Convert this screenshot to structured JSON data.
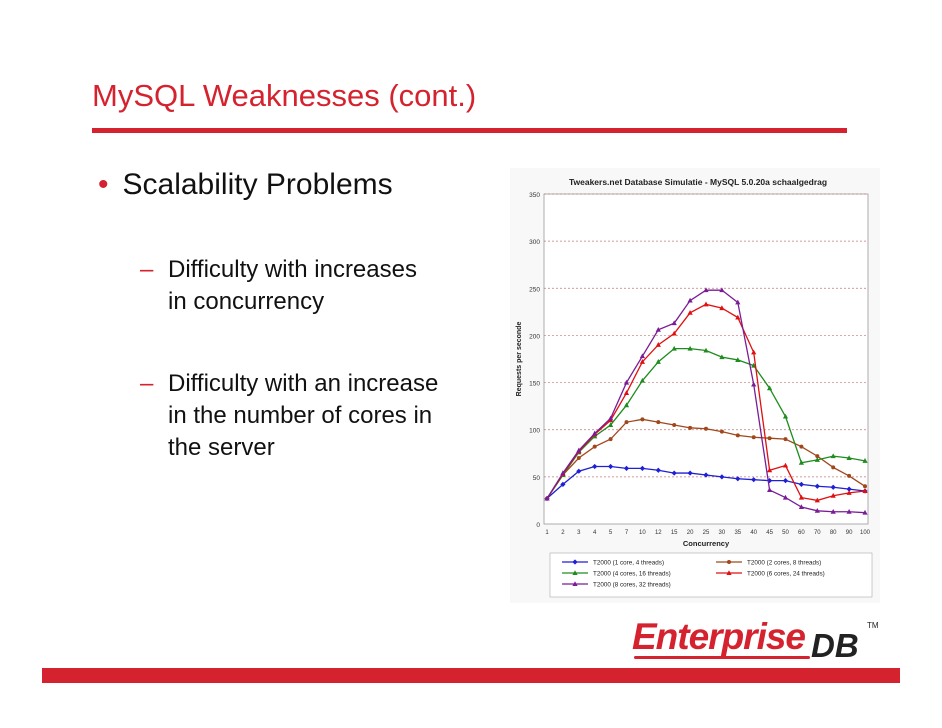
{
  "slide": {
    "title": "MySQL Weaknesses (cont.)",
    "bullet": "Scalability Problems",
    "sub_bullets": [
      {
        "line1": "Difficulty with increases",
        "line2": "in concurrency",
        "line3": ""
      },
      {
        "line1": "Difficulty with an increase",
        "line2": "in the number of cores in",
        "line3": "the server"
      }
    ]
  },
  "logo": {
    "part1": "Enterprise",
    "part2": "DB",
    "tm": "TM"
  },
  "colors": {
    "accent": "#d5222f",
    "blue": "#1f1fd6",
    "brown": "#a0471c",
    "green": "#1e8c1e",
    "red": "#e01010",
    "purple": "#7a1c96"
  },
  "chart_data": {
    "type": "line",
    "title": "Tweakers.net Database Simulatie - MySQL 5.0.20a schaalgedrag",
    "xlabel": "Concurrency",
    "ylabel": "Requests per seconde",
    "ylim": [
      0,
      350
    ],
    "yticks": [
      "0",
      "50",
      "100",
      "150",
      "200",
      "250",
      "300",
      "350"
    ],
    "grid": true,
    "legend_position": "bottom",
    "categories": [
      "1",
      "2",
      "3",
      "4",
      "5",
      "7",
      "10",
      "12",
      "15",
      "20",
      "25",
      "30",
      "35",
      "40",
      "45",
      "50",
      "60",
      "70",
      "80",
      "90",
      "100"
    ],
    "series": [
      {
        "name": "T2000 (1 core, 4 threads)",
        "color": "#1f1fd6",
        "marker": "diamond",
        "values": [
          27,
          42,
          56,
          61,
          61,
          59,
          59,
          57,
          54,
          54,
          52,
          50,
          48,
          47,
          46,
          46,
          42,
          40,
          39,
          37,
          35
        ]
      },
      {
        "name": "T2000 (2 cores, 8 threads)",
        "color": "#a0471c",
        "marker": "circle",
        "values": [
          27,
          52,
          70,
          82,
          90,
          108,
          111,
          108,
          105,
          102,
          101,
          98,
          94,
          92,
          91,
          90,
          82,
          72,
          60,
          51,
          40
        ]
      },
      {
        "name": "T2000 (4 cores, 16 threads)",
        "color": "#1e8c1e",
        "marker": "triangle",
        "values": [
          27,
          52,
          76,
          93,
          105,
          126,
          152,
          172,
          186,
          186,
          184,
          177,
          174,
          168,
          144,
          114,
          65,
          68,
          72,
          70,
          67
        ]
      },
      {
        "name": "T2000 (6 cores, 24 threads)",
        "color": "#e01010",
        "marker": "triangle",
        "values": [
          27,
          53,
          77,
          95,
          110,
          139,
          172,
          190,
          202,
          224,
          233,
          229,
          219,
          182,
          57,
          62,
          28,
          25,
          30,
          33,
          35
        ]
      },
      {
        "name": "T2000 (8 cores, 32 threads)",
        "color": "#7a1c96",
        "marker": "triangle",
        "values": [
          27,
          54,
          78,
          96,
          112,
          150,
          178,
          206,
          213,
          237,
          248,
          248,
          235,
          148,
          36,
          28,
          18,
          14,
          13,
          13,
          12
        ]
      }
    ]
  }
}
